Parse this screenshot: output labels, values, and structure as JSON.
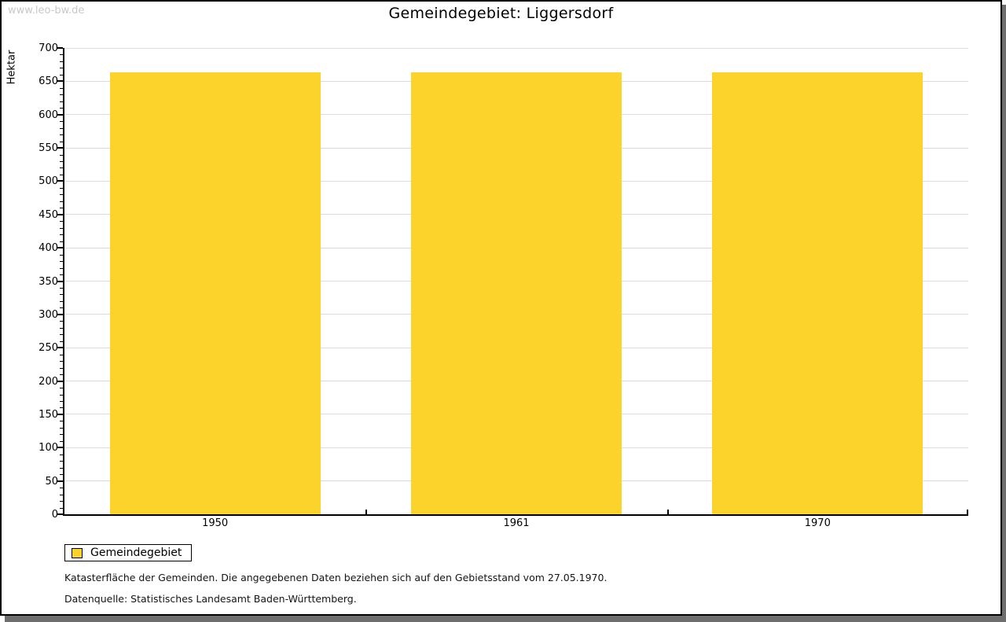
{
  "watermark": "www.leo-bw.de",
  "chart_data": {
    "type": "bar",
    "title": "Gemeindegebiet: Liggersdorf",
    "ylabel": "Hektar",
    "xlabel": "",
    "categories": [
      "1950",
      "1961",
      "1970"
    ],
    "series": [
      {
        "name": "Gemeindegebiet",
        "values": [
          664,
          664,
          664
        ]
      }
    ],
    "ylim": [
      0,
      700
    ],
    "yticks": [
      0,
      50,
      100,
      150,
      200,
      250,
      300,
      350,
      400,
      450,
      500,
      550,
      600,
      650,
      700
    ],
    "minor_tick_step": 10,
    "grid": "horizontal-major",
    "legend_position": "bottom-left",
    "bar_color": "#fcd32b"
  },
  "legend": {
    "label": "Gemeindegebiet",
    "swatch_color": "#fcd32b"
  },
  "footer": {
    "line1": "Katasterfläche der Gemeinden. Die angegebenen Daten beziehen sich auf den Gebietsstand vom 27.05.1970.",
    "line2": "Datenquelle: Statistisches Landesamt Baden-Württemberg."
  },
  "colors": {
    "bar": "#fcd32b",
    "grid": "#dcdcdc",
    "axis": "#000000",
    "watermark": "#c9c9c9",
    "shadow": "#6e6e6e"
  }
}
